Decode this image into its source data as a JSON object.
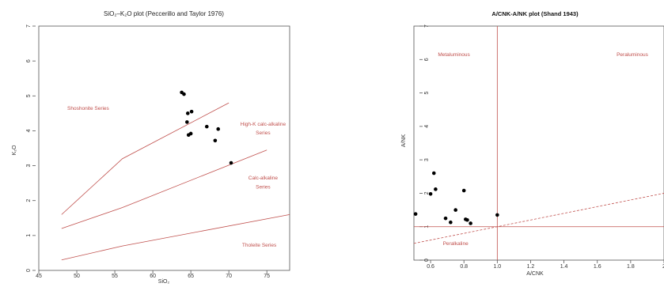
{
  "chart_data": [
    {
      "type": "scatter",
      "title": "SiO₂–K₂O plot (Peccerillo and Taylor 1976)",
      "xlabel": "SiO₂",
      "ylabel": "K₂O",
      "xlim": [
        45,
        78
      ],
      "ylim": [
        0,
        7
      ],
      "xticks": [
        45,
        50,
        55,
        60,
        65,
        70,
        75
      ],
      "yticks": [
        0,
        1,
        2,
        3,
        4,
        5,
        6,
        7
      ],
      "series_color": "#000000",
      "line_color": "#c0504d",
      "points": [
        {
          "x": 63.8,
          "y": 5.1
        },
        {
          "x": 64.1,
          "y": 5.05
        },
        {
          "x": 64.6,
          "y": 4.5
        },
        {
          "x": 65.1,
          "y": 4.55
        },
        {
          "x": 64.5,
          "y": 4.25
        },
        {
          "x": 64.7,
          "y": 3.88
        },
        {
          "x": 65.0,
          "y": 3.92
        },
        {
          "x": 67.1,
          "y": 4.12
        },
        {
          "x": 68.6,
          "y": 4.05
        },
        {
          "x": 68.2,
          "y": 3.72
        },
        {
          "x": 70.3,
          "y": 3.08
        }
      ],
      "boundaries": [
        [
          [
            48,
            1.6
          ],
          [
            56,
            3.2
          ],
          [
            70,
            4.8
          ]
        ],
        [
          [
            48,
            1.2
          ],
          [
            56,
            1.8
          ],
          [
            75,
            3.45
          ]
        ],
        [
          [
            48,
            0.3
          ],
          [
            56,
            0.7
          ],
          [
            78,
            1.6
          ]
        ]
      ],
      "field_labels": [
        {
          "text": "Shoshonite Series",
          "x": 51.5,
          "y": 4.6
        },
        {
          "text": "High-K calc-alkaline",
          "x": 74.5,
          "y": 4.15
        },
        {
          "text": "Series",
          "x": 74.5,
          "y": 3.9
        },
        {
          "text": "Calc-alkaline",
          "x": 74.5,
          "y": 2.6
        },
        {
          "text": "Series",
          "x": 74.5,
          "y": 2.35
        },
        {
          "text": "Tholeite Series",
          "x": 74,
          "y": 0.68
        }
      ]
    },
    {
      "type": "scatter",
      "title": "A/CNK-A/NK plot (Shand 1943)",
      "xlabel": "A/CNK",
      "ylabel": "A/NK",
      "xlim": [
        0.5,
        2.0
      ],
      "ylim": [
        0,
        7
      ],
      "xticks": [
        0.6,
        0.8,
        1.0,
        1.2,
        1.4,
        1.6,
        1.8,
        2
      ],
      "yticks": [
        0,
        1,
        2,
        3,
        4,
        5,
        6,
        7
      ],
      "series_color": "#000000",
      "line_color": "#c0504d",
      "points": [
        {
          "x": 0.51,
          "y": 1.38
        },
        {
          "x": 0.6,
          "y": 1.98
        },
        {
          "x": 0.62,
          "y": 2.6
        },
        {
          "x": 0.63,
          "y": 2.12
        },
        {
          "x": 0.69,
          "y": 1.25
        },
        {
          "x": 0.72,
          "y": 1.13
        },
        {
          "x": 0.75,
          "y": 1.5
        },
        {
          "x": 0.8,
          "y": 2.08
        },
        {
          "x": 0.81,
          "y": 1.22
        },
        {
          "x": 0.82,
          "y": 1.2
        },
        {
          "x": 0.84,
          "y": 1.1
        },
        {
          "x": 1.0,
          "y": 1.35
        }
      ],
      "vline": 1.0,
      "hline": 1.0,
      "dashed_line": [
        [
          0.5,
          0.5
        ],
        [
          2.0,
          2.0
        ]
      ],
      "field_labels": [
        {
          "text": "Metaluminous",
          "x": 0.74,
          "y": 6.1
        },
        {
          "text": "Peraluminous",
          "x": 1.81,
          "y": 6.1
        },
        {
          "text": "Peralkaline",
          "x": 0.75,
          "y": 0.45
        }
      ]
    }
  ]
}
